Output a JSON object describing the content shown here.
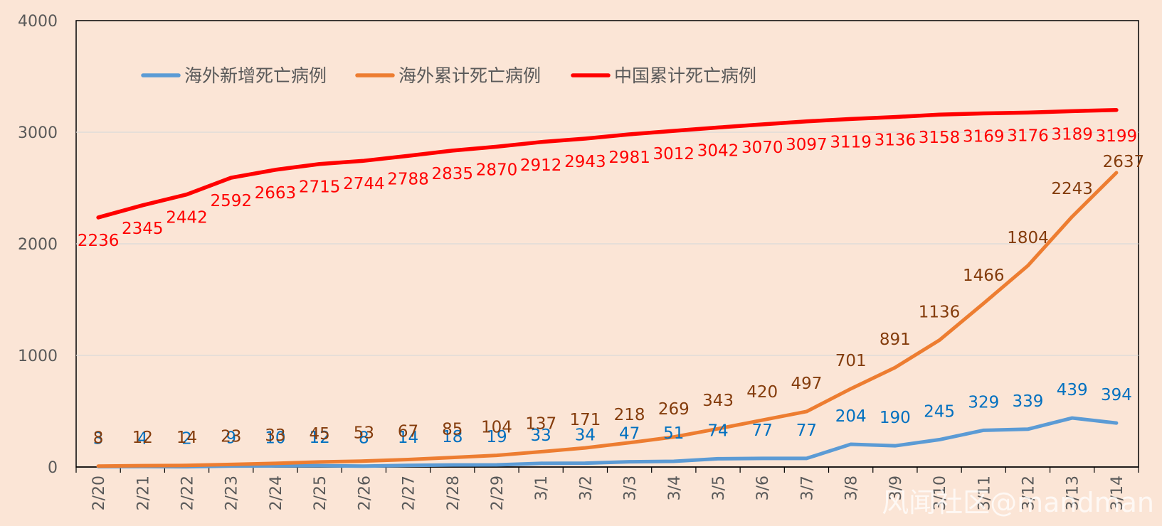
{
  "chart_data": {
    "type": "line",
    "categories": [
      "2/20",
      "2/21",
      "2/22",
      "2/23",
      "2/24",
      "2/25",
      "2/26",
      "2/27",
      "2/28",
      "2/29",
      "3/1",
      "3/2",
      "3/3",
      "3/4",
      "3/5",
      "3/6",
      "3/7",
      "3/8",
      "3/9",
      "3/10",
      "3/11",
      "3/12",
      "3/13",
      "3/14"
    ],
    "ylim": [
      0,
      4000
    ],
    "yticks": [
      "0",
      "1000",
      "2000",
      "3000",
      "4000"
    ],
    "grid": true,
    "legend_position": "top-left",
    "series": [
      {
        "name": "海外新增死亡病例",
        "color": "#5b9bd5",
        "label_color": "#0070c0",
        "values": [
          3,
          4,
          2,
          9,
          10,
          12,
          8,
          14,
          18,
          19,
          33,
          34,
          47,
          51,
          74,
          77,
          77,
          204,
          190,
          245,
          329,
          339,
          439,
          394
        ]
      },
      {
        "name": "海外累计死亡病例",
        "color": "#ed7d31",
        "label_color": "#843c0c",
        "values": [
          8,
          12,
          14,
          23,
          33,
          45,
          53,
          67,
          85,
          104,
          137,
          171,
          218,
          269,
          343,
          420,
          497,
          701,
          891,
          1136,
          1466,
          1804,
          2243,
          2637
        ]
      },
      {
        "name": "中国累计死亡病例",
        "color": "#ff0000",
        "label_color": "#ff0000",
        "values": [
          2236,
          2345,
          2442,
          2592,
          2663,
          2715,
          2744,
          2788,
          2835,
          2870,
          2912,
          2943,
          2981,
          3012,
          3042,
          3070,
          3097,
          3119,
          3136,
          3158,
          3169,
          3176,
          3189,
          3199
        ]
      }
    ]
  },
  "watermark": "风闻社区@mandman"
}
